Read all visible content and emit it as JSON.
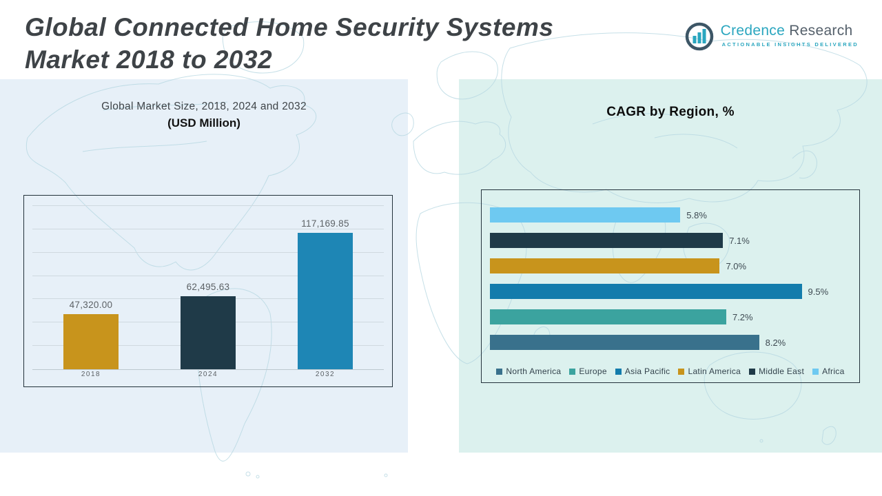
{
  "header": {
    "title_line1": "Global Connected Home Security Systems",
    "title_line2": "Market 2018 to 2032",
    "logo": {
      "icon": "bar-chart-circle-icon",
      "name_primary": "Credence",
      "name_secondary": "Research",
      "tagline": "Actionable Insights Delivered"
    }
  },
  "colors": {
    "left_panel_bg": "#E7F0F8",
    "right_panel_bg": "#DCF1EE",
    "map_line": "#B7D8E2",
    "title_text": "#3E4347",
    "brand_teal": "#2AA6BF",
    "brand_gray": "#55606B",
    "chart_border": "#22313A"
  },
  "chart_data": [
    {
      "type": "bar",
      "title": "Global Market Size, 2018, 2024 and 2032",
      "subtitle": "(USD Million)",
      "categories": [
        "2018",
        "2024",
        "2032"
      ],
      "values": [
        47320.0,
        62495.63,
        117169.85
      ],
      "value_labels": [
        "47,320.00",
        "62,495.63",
        "117,169.85"
      ],
      "bar_colors": [
        "#C8941C",
        "#1F3A48",
        "#1E86B5"
      ],
      "xlabel": "",
      "ylabel": "",
      "ylim": [
        0,
        140000
      ],
      "gridline_step": 20000,
      "grid": true,
      "legend_position": "none"
    },
    {
      "type": "bar",
      "orientation": "horizontal",
      "title": "CAGR by Region, %",
      "xlim": [
        0,
        11
      ],
      "grid": false,
      "legend_position": "bottom",
      "rows": [
        {
          "region": "Africa",
          "value": 5.8,
          "label": "5.8%",
          "color": "#6EC9F1"
        },
        {
          "region": "Middle East",
          "value": 7.1,
          "label": "7.1%",
          "color": "#1F3A48"
        },
        {
          "region": "Latin America",
          "value": 7.0,
          "label": "7.0%",
          "color": "#C8941C"
        },
        {
          "region": "Asia Pacific",
          "value": 9.5,
          "label": "9.5%",
          "color": "#137CAC"
        },
        {
          "region": "Europe",
          "value": 7.2,
          "label": "7.2%",
          "color": "#3BA39F"
        },
        {
          "region": "North America",
          "value": 8.2,
          "label": "8.2%",
          "color": "#39718C"
        }
      ],
      "legend": [
        {
          "label": "North America",
          "color": "#39718C"
        },
        {
          "label": "Europe",
          "color": "#3BA39F"
        },
        {
          "label": "Asia Pacific",
          "color": "#137CAC"
        },
        {
          "label": "Latin America",
          "color": "#C8941C"
        },
        {
          "label": "Middle East",
          "color": "#1F3A48"
        },
        {
          "label": "Africa",
          "color": "#6EC9F1"
        }
      ]
    }
  ]
}
